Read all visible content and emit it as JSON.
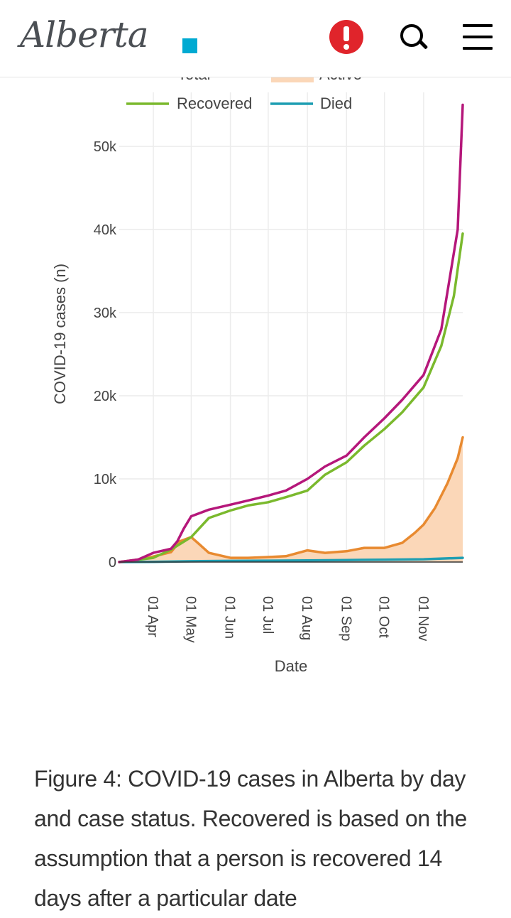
{
  "header": {
    "logo_text": "Alberta",
    "icons": [
      "alert-icon",
      "search-icon",
      "menu-icon"
    ],
    "brand_color": "#00aad2",
    "alert_color": "#e0242b"
  },
  "chart_data": {
    "type": "line",
    "xlabel": "Date",
    "ylabel": "COVID-19 cases (n)",
    "x_ticks": [
      "01 Apr",
      "01 May",
      "01 Jun",
      "01 Jul",
      "01 Aug",
      "01 Sep",
      "01 Oct",
      "01 Nov"
    ],
    "y_ticks": [
      "0",
      "10k",
      "20k",
      "30k",
      "40k",
      "50k"
    ],
    "ylim": [
      0,
      56000
    ],
    "legend": {
      "placement": "top",
      "partially_hidden": [
        "Total",
        "Active"
      ],
      "visible": [
        "Recovered",
        "Died"
      ]
    },
    "grid": true,
    "series": [
      {
        "name": "Total",
        "color": "#b5177a",
        "x": [
          "2020-03-05",
          "2020-03-20",
          "2020-04-01",
          "2020-04-15",
          "2020-04-20",
          "2020-04-25",
          "2020-05-01",
          "2020-05-15",
          "2020-06-01",
          "2020-06-15",
          "2020-07-01",
          "2020-07-15",
          "2020-08-01",
          "2020-08-15",
          "2020-09-01",
          "2020-09-15",
          "2020-10-01",
          "2020-10-15",
          "2020-11-01",
          "2020-11-15",
          "2020-11-28",
          "2020-12-02"
        ],
        "values": [
          0,
          300,
          1100,
          1600,
          2500,
          4000,
          5500,
          6300,
          6900,
          7400,
          8000,
          8600,
          10000,
          11500,
          12800,
          15000,
          17300,
          19500,
          22500,
          28000,
          40000,
          55000
        ]
      },
      {
        "name": "Recovered",
        "color": "#7ab92d",
        "x": [
          "2020-03-05",
          "2020-04-01",
          "2020-04-15",
          "2020-05-01",
          "2020-05-15",
          "2020-06-01",
          "2020-06-15",
          "2020-07-01",
          "2020-07-15",
          "2020-08-01",
          "2020-08-15",
          "2020-09-01",
          "2020-09-15",
          "2020-10-01",
          "2020-10-15",
          "2020-11-01",
          "2020-11-15",
          "2020-11-25",
          "2020-12-02"
        ],
        "values": [
          0,
          500,
          1500,
          3000,
          5300,
          6200,
          6800,
          7200,
          7800,
          8600,
          10500,
          12000,
          14000,
          16000,
          18000,
          21000,
          26000,
          32000,
          39500
        ]
      },
      {
        "name": "Active",
        "color": "#e88a30",
        "fill": "#fbd7b8",
        "x": [
          "2020-03-05",
          "2020-03-25",
          "2020-04-15",
          "2020-04-22",
          "2020-05-01",
          "2020-05-07",
          "2020-05-15",
          "2020-06-01",
          "2020-06-15",
          "2020-07-01",
          "2020-07-15",
          "2020-08-01",
          "2020-08-15",
          "2020-09-01",
          "2020-09-15",
          "2020-10-01",
          "2020-10-15",
          "2020-10-25",
          "2020-11-01",
          "2020-11-10",
          "2020-11-20",
          "2020-11-28",
          "2020-12-02"
        ],
        "values": [
          0,
          400,
          1200,
          2500,
          3000,
          2200,
          1100,
          500,
          500,
          600,
          700,
          1400,
          1100,
          1300,
          1700,
          1700,
          2300,
          3500,
          4500,
          6500,
          9500,
          12500,
          15000
        ]
      },
      {
        "name": "Died",
        "color": "#1e9eb2",
        "x": [
          "2020-03-05",
          "2020-04-01",
          "2020-05-01",
          "2020-06-01",
          "2020-07-01",
          "2020-08-01",
          "2020-09-01",
          "2020-10-01",
          "2020-11-01",
          "2020-12-02"
        ],
        "values": [
          0,
          20,
          90,
          140,
          160,
          200,
          240,
          280,
          330,
          500
        ]
      }
    ]
  },
  "caption": "Figure 4: COVID-19 cases in Alberta by day and case status. Recovered is based on the assumption that a person is recovered 14 days after a particular date"
}
